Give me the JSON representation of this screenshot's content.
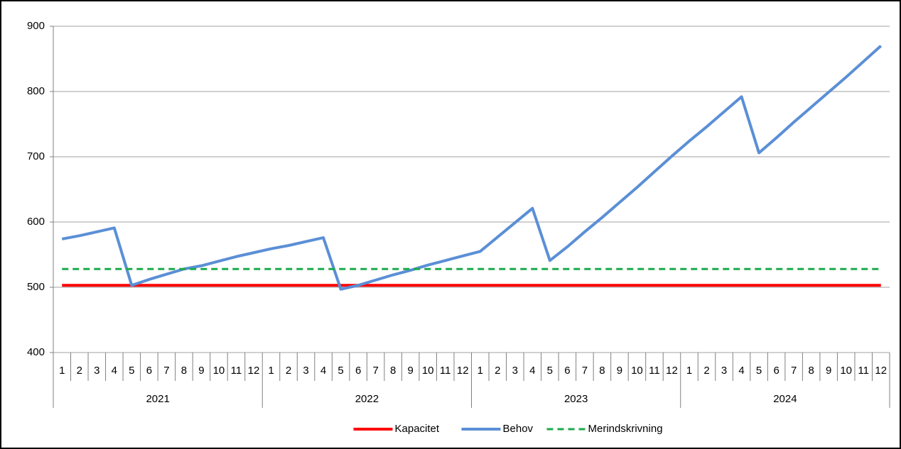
{
  "chart_data": {
    "type": "line",
    "categories": [
      "1",
      "2",
      "3",
      "4",
      "5",
      "6",
      "7",
      "8",
      "9",
      "10",
      "11",
      "12",
      "1",
      "2",
      "3",
      "4",
      "5",
      "6",
      "7",
      "8",
      "9",
      "10",
      "11",
      "12",
      "1",
      "2",
      "3",
      "4",
      "5",
      "6",
      "7",
      "8",
      "9",
      "10",
      "11",
      "12",
      "1",
      "2",
      "3",
      "4",
      "5",
      "6",
      "7",
      "8",
      "9",
      "10",
      "11",
      "12"
    ],
    "category_groups": [
      "2021",
      "2022",
      "2023",
      "2024"
    ],
    "series": [
      {
        "name": "Kapacitet",
        "color": "#ff0000",
        "style": "solid",
        "values": [
          503,
          503,
          503,
          503,
          503,
          503,
          503,
          503,
          503,
          503,
          503,
          503,
          503,
          503,
          503,
          503,
          503,
          503,
          503,
          503,
          503,
          503,
          503,
          503,
          503,
          503,
          503,
          503,
          503,
          503,
          503,
          503,
          503,
          503,
          503,
          503,
          503,
          503,
          503,
          503,
          503,
          503,
          503,
          503,
          503,
          503,
          503,
          503
        ]
      },
      {
        "name": "Behov",
        "color": "#5b8fd6",
        "style": "solid",
        "values": [
          574,
          579,
          585,
          591,
          503,
          512,
          520,
          528,
          533,
          540,
          547,
          553,
          559,
          564,
          570,
          576,
          497,
          503,
          511,
          519,
          526,
          534,
          541,
          548,
          555,
          577,
          599,
          621,
          541,
          562,
          585,
          607,
          630,
          653,
          677,
          701,
          724,
          746,
          769,
          792,
          706,
          729,
          753,
          776,
          799,
          822,
          846,
          870
        ]
      },
      {
        "name": "Merindskrivning",
        "color": "#1aab4a",
        "style": "dashed",
        "values": [
          528,
          528,
          528,
          528,
          528,
          528,
          528,
          528,
          528,
          528,
          528,
          528,
          528,
          528,
          528,
          528,
          528,
          528,
          528,
          528,
          528,
          528,
          528,
          528,
          528,
          528,
          528,
          528,
          528,
          528,
          528,
          528,
          528,
          528,
          528,
          528,
          528,
          528,
          528,
          528,
          528,
          528,
          528,
          528,
          528,
          528,
          528,
          528
        ]
      }
    ],
    "ylim": [
      400,
      900
    ],
    "yticks": [
      400,
      500,
      600,
      700,
      800,
      900
    ],
    "grid": true,
    "legend": "bottom"
  }
}
